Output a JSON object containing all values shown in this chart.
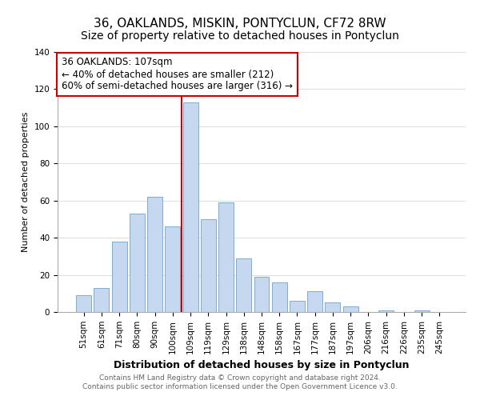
{
  "title": "36, OAKLANDS, MISKIN, PONTYCLUN, CF72 8RW",
  "subtitle": "Size of property relative to detached houses in Pontyclun",
  "xlabel": "Distribution of detached houses by size in Pontyclun",
  "ylabel": "Number of detached properties",
  "bar_labels": [
    "51sqm",
    "61sqm",
    "71sqm",
    "80sqm",
    "90sqm",
    "100sqm",
    "109sqm",
    "119sqm",
    "129sqm",
    "138sqm",
    "148sqm",
    "158sqm",
    "167sqm",
    "177sqm",
    "187sqm",
    "197sqm",
    "206sqm",
    "216sqm",
    "226sqm",
    "235sqm",
    "245sqm"
  ],
  "bar_values": [
    9,
    13,
    38,
    53,
    62,
    46,
    113,
    50,
    59,
    29,
    19,
    16,
    6,
    11,
    5,
    3,
    0,
    1,
    0,
    1,
    0
  ],
  "bar_color": "#c5d8f0",
  "bar_edge_color": "#7badd4",
  "highlight_bar_index": 6,
  "highlight_line_color": "#cc0000",
  "annotation_text": "36 OAKLANDS: 107sqm\n← 40% of detached houses are smaller (212)\n60% of semi-detached houses are larger (316) →",
  "annotation_box_color": "#ffffff",
  "annotation_box_edge_color": "#cc0000",
  "ylim": [
    0,
    140
  ],
  "yticks": [
    0,
    20,
    40,
    60,
    80,
    100,
    120,
    140
  ],
  "footer_line1": "Contains HM Land Registry data © Crown copyright and database right 2024.",
  "footer_line2": "Contains public sector information licensed under the Open Government Licence v3.0.",
  "title_fontsize": 11,
  "xlabel_fontsize": 9,
  "ylabel_fontsize": 8,
  "tick_fontsize": 7.5,
  "annotation_fontsize": 8.5,
  "footer_fontsize": 6.5
}
